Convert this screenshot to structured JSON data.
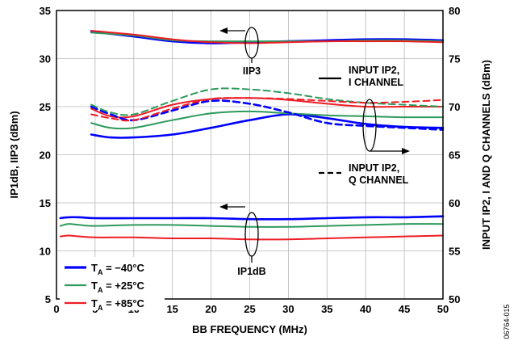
{
  "chart_data": {
    "type": "line",
    "xlabel": "BB FREQUENCY (MHz)",
    "ylabel_left": "IP1dB, IIP3 (dBm)",
    "ylabel_right": "INPUT IP2, I AND Q CHANNELS (dBm)",
    "xlim": [
      0,
      50
    ],
    "ylim_left": [
      5,
      35
    ],
    "ylim_right": [
      50,
      80
    ],
    "x_ticks": [
      "0",
      "5",
      "10",
      "15",
      "20",
      "25",
      "30",
      "35",
      "40",
      "45",
      "50"
    ],
    "y_ticks_left": [
      "5",
      "10",
      "15",
      "20",
      "25",
      "30",
      "35"
    ],
    "y_ticks_right": [
      "50",
      "55",
      "60",
      "65",
      "70",
      "75",
      "80"
    ],
    "grid": true,
    "legend": {
      "placement": "bottom-left",
      "entries": [
        {
          "prefix": "T",
          "sub": "A",
          "suffix": " = −40°C",
          "color": "#0000ff"
        },
        {
          "prefix": "T",
          "sub": "A",
          "suffix": " = +25°C",
          "color": "#2e9a5c"
        },
        {
          "prefix": "T",
          "sub": "A",
          "suffix": " = +85°C",
          "color": "#ee1c24"
        }
      ]
    },
    "annotations": {
      "iip3": "IIP3",
      "ip1db": "IP1dB",
      "ip2_i_line1": "INPUT IP2,",
      "ip2_i_line2": "I CHANNEL",
      "ip2_q_line1": "INPUT IP2,",
      "ip2_q_line2": "Q CHANNEL"
    },
    "figure_id": "06764-015",
    "series": [
      {
        "group": "IIP3",
        "axis": "left",
        "temp": "-40",
        "color": "#0000ff",
        "dash": false,
        "x": [
          4.5,
          10,
          15,
          20,
          25,
          30,
          35,
          40,
          45,
          50
        ],
        "y": [
          32.8,
          32.3,
          31.8,
          31.6,
          31.7,
          31.8,
          31.9,
          32.0,
          32.0,
          31.9
        ]
      },
      {
        "group": "IIP3",
        "axis": "left",
        "temp": "+25",
        "color": "#2e9a5c",
        "dash": false,
        "x": [
          4.5,
          10,
          15,
          20,
          25,
          30,
          35,
          40,
          45,
          50
        ],
        "y": [
          32.7,
          32.4,
          31.9,
          31.8,
          31.8,
          31.8,
          31.8,
          31.9,
          31.9,
          31.8
        ]
      },
      {
        "group": "IIP3",
        "axis": "left",
        "temp": "+85",
        "color": "#ee1c24",
        "dash": false,
        "x": [
          4.5,
          10,
          15,
          20,
          25,
          30,
          35,
          40,
          45,
          50
        ],
        "y": [
          32.9,
          32.5,
          32.0,
          31.7,
          31.6,
          31.7,
          31.8,
          31.8,
          31.8,
          31.7
        ]
      },
      {
        "group": "IP1dB",
        "axis": "left",
        "temp": "-40",
        "color": "#0000ff",
        "dash": false,
        "x": [
          0.5,
          1.5,
          3,
          5,
          10,
          15,
          20,
          25,
          30,
          35,
          40,
          45,
          50
        ],
        "y": [
          13.4,
          13.5,
          13.5,
          13.4,
          13.4,
          13.4,
          13.4,
          13.3,
          13.3,
          13.4,
          13.5,
          13.5,
          13.6
        ]
      },
      {
        "group": "IP1dB",
        "axis": "left",
        "temp": "+25",
        "color": "#2e9a5c",
        "dash": false,
        "x": [
          0.5,
          1.5,
          3,
          5,
          10,
          15,
          20,
          25,
          30,
          35,
          40,
          45,
          50
        ],
        "y": [
          12.6,
          12.8,
          12.7,
          12.6,
          12.7,
          12.7,
          12.6,
          12.5,
          12.5,
          12.6,
          12.7,
          12.8,
          12.8
        ]
      },
      {
        "group": "IP1dB",
        "axis": "left",
        "temp": "+85",
        "color": "#ee1c24",
        "dash": false,
        "x": [
          0.5,
          1.5,
          3,
          5,
          10,
          15,
          20,
          25,
          30,
          35,
          40,
          45,
          50
        ],
        "y": [
          11.5,
          11.6,
          11.5,
          11.4,
          11.4,
          11.3,
          11.3,
          11.2,
          11.2,
          11.3,
          11.4,
          11.5,
          11.6
        ]
      },
      {
        "group": "IP2-I",
        "axis": "right",
        "temp": "-40",
        "color": "#0000ff",
        "dash": false,
        "x": [
          4.5,
          7,
          10,
          15,
          20,
          25,
          30,
          35,
          40,
          45,
          50
        ],
        "y": [
          67.1,
          66.8,
          66.8,
          67.1,
          67.8,
          68.6,
          69.2,
          68.8,
          68.2,
          67.9,
          67.8
        ]
      },
      {
        "group": "IP2-I",
        "axis": "right",
        "temp": "+25",
        "color": "#2e9a5c",
        "dash": false,
        "x": [
          4.5,
          7,
          10,
          15,
          20,
          25,
          30,
          35,
          40,
          45,
          50
        ],
        "y": [
          68.3,
          67.8,
          67.8,
          68.6,
          69.3,
          69.5,
          69.3,
          69.1,
          69.0,
          68.9,
          68.9
        ]
      },
      {
        "group": "IP2-I",
        "axis": "right",
        "temp": "+85",
        "color": "#ee1c24",
        "dash": false,
        "x": [
          4.5,
          7,
          10,
          15,
          20,
          25,
          30,
          35,
          40,
          45,
          50
        ],
        "y": [
          69.8,
          69.0,
          69.0,
          70.2,
          70.8,
          70.9,
          70.7,
          70.3,
          70.0,
          70.0,
          70.0
        ]
      },
      {
        "group": "IP2-Q",
        "axis": "right",
        "temp": "-40",
        "color": "#0000ff",
        "dash": true,
        "x": [
          4.5,
          7,
          10,
          15,
          20,
          25,
          30,
          35,
          40,
          45,
          50
        ],
        "y": [
          70.0,
          69.2,
          68.6,
          69.6,
          70.6,
          70.3,
          69.4,
          68.3,
          68.0,
          67.8,
          67.6
        ]
      },
      {
        "group": "IP2-Q",
        "axis": "right",
        "temp": "+25",
        "color": "#2e9a5c",
        "dash": true,
        "x": [
          4.5,
          7,
          10,
          15,
          20,
          25,
          30,
          35,
          40,
          45,
          50
        ],
        "y": [
          70.2,
          69.4,
          69.2,
          70.6,
          71.8,
          71.8,
          71.4,
          70.8,
          70.4,
          70.2,
          70.0
        ]
      },
      {
        "group": "IP2-Q",
        "axis": "right",
        "temp": "+85",
        "color": "#ee1c24",
        "dash": true,
        "x": [
          4.5,
          7,
          10,
          15,
          20,
          25,
          30,
          35,
          40,
          45,
          50
        ],
        "y": [
          69.2,
          68.8,
          68.6,
          69.8,
          70.8,
          70.9,
          70.8,
          70.6,
          70.4,
          70.5,
          70.7
        ]
      }
    ]
  }
}
